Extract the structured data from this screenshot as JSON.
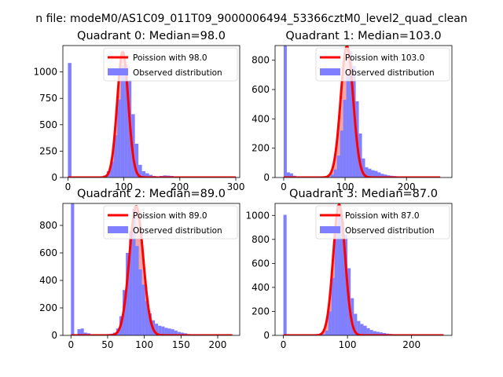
{
  "figure": {
    "suptitle": "n file: modeM0/AS1C09_011T09_9000006494_53366cztM0_level2_quad_clean"
  },
  "colors": {
    "hist": "#7f7fff",
    "poisson_line": "#ff0000",
    "poisson_fill": "#f4a5a5",
    "axis": "#000000",
    "background": "#ffffff"
  },
  "chart_data": [
    {
      "type": "bar",
      "title": "Quadrant 0: Median=98.0",
      "xlim": [
        -9,
        307
      ],
      "ylim": [
        0,
        1250
      ],
      "xticks": [
        0,
        100,
        200,
        300
      ],
      "yticks": [
        0,
        250,
        500,
        750,
        1000
      ],
      "bin_width": 6.3,
      "hist": {
        "x": [
          0,
          63,
          69.3,
          75.6,
          81.9,
          88.2,
          94.5,
          100.8,
          107.1,
          113.4,
          119.7,
          126,
          132.3,
          138.6,
          144.9,
          151.2,
          157.5,
          163.8,
          170.1,
          176.4,
          182.7,
          189,
          195.3
        ],
        "y": [
          1085,
          20,
          60,
          150,
          400,
          740,
          1060,
          1070,
          920,
          600,
          320,
          120,
          60,
          40,
          25,
          15,
          10,
          15,
          20,
          18,
          15,
          10,
          8
        ]
      },
      "poisson": {
        "mean": 98.0,
        "peak": 1190,
        "x_range": [
          0,
          300
        ]
      },
      "legend": [
        "Poission with 98.0",
        "Observed distribution"
      ]
    },
    {
      "type": "bar",
      "title": "Quadrant 1: Median=103.0",
      "xlim": [
        -14,
        274
      ],
      "ylim": [
        0,
        900
      ],
      "xticks": [
        0,
        100,
        200
      ],
      "yticks": [
        0,
        200,
        400,
        600,
        800
      ],
      "bin_width": 5.1,
      "hist": {
        "x": [
          0,
          5.1,
          10.2,
          15.3,
          76.5,
          81.6,
          86.7,
          91.8,
          96.9,
          102,
          107.1,
          112.2,
          117.3,
          122.4,
          127.5,
          132.6,
          137.7,
          142.8,
          147.9,
          153,
          158.1,
          163.2,
          168.3,
          173.4,
          178.5,
          183.6,
          188.7
        ],
        "y": [
          900,
          35,
          28,
          12,
          20,
          55,
          150,
          320,
          530,
          700,
          860,
          760,
          520,
          300,
          130,
          70,
          60,
          50,
          45,
          35,
          25,
          20,
          15,
          12,
          10,
          8,
          6
        ]
      },
      "poisson": {
        "mean": 103.0,
        "peak": 895,
        "x_range": [
          0,
          255
        ]
      },
      "legend": [
        "Poission with 103.0",
        "Observed distribution"
      ]
    },
    {
      "type": "bar",
      "title": "Quadrant 2: Median=89.0",
      "xlim": [
        -11,
        230
      ],
      "ylim": [
        0,
        960
      ],
      "xticks": [
        0,
        50,
        100,
        150,
        200
      ],
      "yticks": [
        0,
        200,
        400,
        600,
        800
      ],
      "bin_width": 4.4,
      "hist": {
        "x": [
          0,
          8.8,
          13.2,
          17.6,
          22,
          48.4,
          52.8,
          57.2,
          61.6,
          66,
          70.4,
          74.8,
          79.2,
          83.6,
          88,
          92.4,
          96.8,
          101.2,
          105.6,
          110,
          114.4,
          118.8,
          123.2,
          127.6,
          132,
          136.4,
          140.8,
          145.2,
          149.6,
          154,
          158.4,
          162.8
        ],
        "y": [
          960,
          45,
          50,
          20,
          15,
          10,
          12,
          20,
          50,
          140,
          330,
          600,
          760,
          920,
          650,
          480,
          370,
          250,
          160,
          110,
          85,
          70,
          65,
          55,
          50,
          45,
          35,
          25,
          20,
          15,
          10,
          8
        ]
      },
      "poisson": {
        "mean": 89.0,
        "peak": 940,
        "x_range": [
          0,
          220
        ]
      },
      "legend": [
        "Poission with 89.0",
        "Observed distribution"
      ]
    },
    {
      "type": "bar",
      "title": "Quadrant 3: Median=87.0",
      "xlim": [
        -13,
        263
      ],
      "ylim": [
        0,
        1100
      ],
      "xticks": [
        0,
        100,
        200
      ],
      "yticks": [
        0,
        200,
        400,
        600,
        800,
        1000
      ],
      "bin_width": 5,
      "hist": {
        "x": [
          0,
          60,
          65,
          70,
          75,
          80,
          85,
          90,
          95,
          100,
          105,
          110,
          115,
          120,
          125,
          130,
          135,
          140,
          145,
          150,
          155,
          160,
          165,
          170,
          175,
          180
        ],
        "y": [
          1005,
          10,
          40,
          200,
          480,
          900,
          1000,
          950,
          840,
          560,
          310,
          180,
          120,
          95,
          80,
          60,
          45,
          35,
          30,
          25,
          20,
          15,
          12,
          10,
          8,
          6
        ]
      },
      "poisson": {
        "mean": 87.0,
        "peak": 1090,
        "x_range": [
          0,
          250
        ]
      },
      "legend": [
        "Poission with 87.0",
        "Observed distribution"
      ]
    }
  ]
}
